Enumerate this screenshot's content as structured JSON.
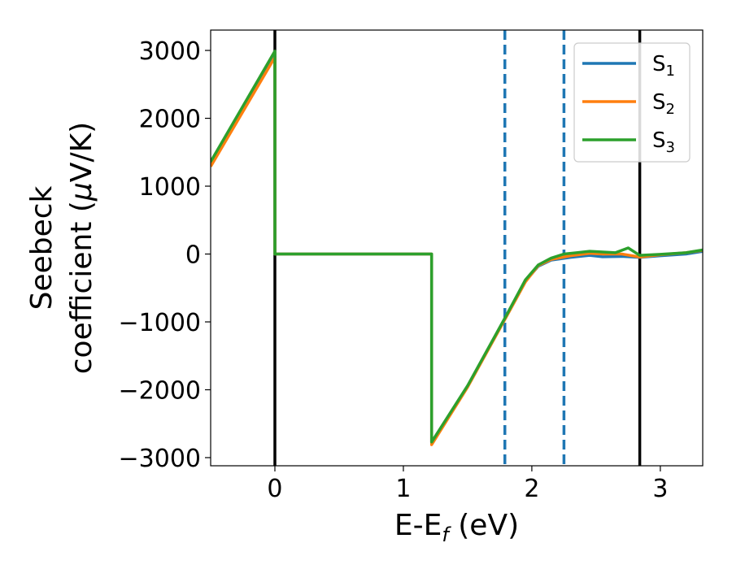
{
  "chart_data": {
    "type": "line",
    "xlabel_main": "E-E",
    "xlabel_sub": "f",
    "xlabel_unit": " (eV)",
    "ylabel_line1": "Seebeck",
    "ylabel_line2_prefix": "coefficient  (",
    "ylabel_line2_mu": "μ",
    "ylabel_line2_suffix": "V/K)",
    "xlim": [
      -0.5,
      3.33
    ],
    "ylim": [
      -3120,
      3300
    ],
    "xticks": [
      0,
      1,
      2,
      3
    ],
    "xtick_labels": [
      "0",
      "1",
      "2",
      "3"
    ],
    "yticks": [
      -3000,
      -2000,
      -1000,
      0,
      1000,
      2000,
      3000
    ],
    "ytick_labels": [
      "−3000",
      "−2000",
      "−1000",
      "0",
      "1000",
      "2000",
      "3000"
    ],
    "vlines_solid": [
      0.0,
      2.84
    ],
    "vlines_dashed": [
      1.79,
      2.25
    ],
    "legend_position": "upper right",
    "series": [
      {
        "name": "S",
        "sub": "1",
        "color": "#1f77b4",
        "points": [
          [
            -0.5,
            1320
          ],
          [
            0.0,
            2910
          ],
          [
            0.0,
            0
          ],
          [
            1.22,
            0
          ],
          [
            1.22,
            -2780
          ],
          [
            1.5,
            -1950
          ],
          [
            1.8,
            -920
          ],
          [
            1.95,
            -400
          ],
          [
            2.05,
            -180
          ],
          [
            2.15,
            -90
          ],
          [
            2.3,
            -50
          ],
          [
            2.45,
            -20
          ],
          [
            2.55,
            -40
          ],
          [
            2.7,
            -35
          ],
          [
            2.84,
            -50
          ],
          [
            3.0,
            -25
          ],
          [
            3.2,
            0
          ],
          [
            3.33,
            40
          ]
        ]
      },
      {
        "name": "S",
        "sub": "2",
        "color": "#ff7f0e",
        "points": [
          [
            -0.5,
            1290
          ],
          [
            0.0,
            2900
          ],
          [
            0.0,
            0
          ],
          [
            1.22,
            0
          ],
          [
            1.22,
            -2810
          ],
          [
            1.5,
            -1960
          ],
          [
            1.8,
            -930
          ],
          [
            1.95,
            -410
          ],
          [
            2.05,
            -170
          ],
          [
            2.15,
            -80
          ],
          [
            2.3,
            -25
          ],
          [
            2.45,
            10
          ],
          [
            2.55,
            0
          ],
          [
            2.7,
            0
          ],
          [
            2.84,
            -45
          ],
          [
            3.0,
            -10
          ],
          [
            3.2,
            20
          ],
          [
            3.33,
            55
          ]
        ]
      },
      {
        "name": "S",
        "sub": "3",
        "color": "#2ca02c",
        "points": [
          [
            -0.5,
            1360
          ],
          [
            0.0,
            2990
          ],
          [
            0.0,
            0
          ],
          [
            1.22,
            0
          ],
          [
            1.22,
            -2770
          ],
          [
            1.5,
            -1940
          ],
          [
            1.8,
            -910
          ],
          [
            1.95,
            -380
          ],
          [
            2.05,
            -160
          ],
          [
            2.15,
            -60
          ],
          [
            2.25,
            0
          ],
          [
            2.35,
            20
          ],
          [
            2.45,
            40
          ],
          [
            2.55,
            30
          ],
          [
            2.65,
            20
          ],
          [
            2.75,
            90
          ],
          [
            2.84,
            -20
          ],
          [
            3.0,
            -5
          ],
          [
            3.2,
            20
          ],
          [
            3.33,
            60
          ]
        ]
      }
    ]
  }
}
